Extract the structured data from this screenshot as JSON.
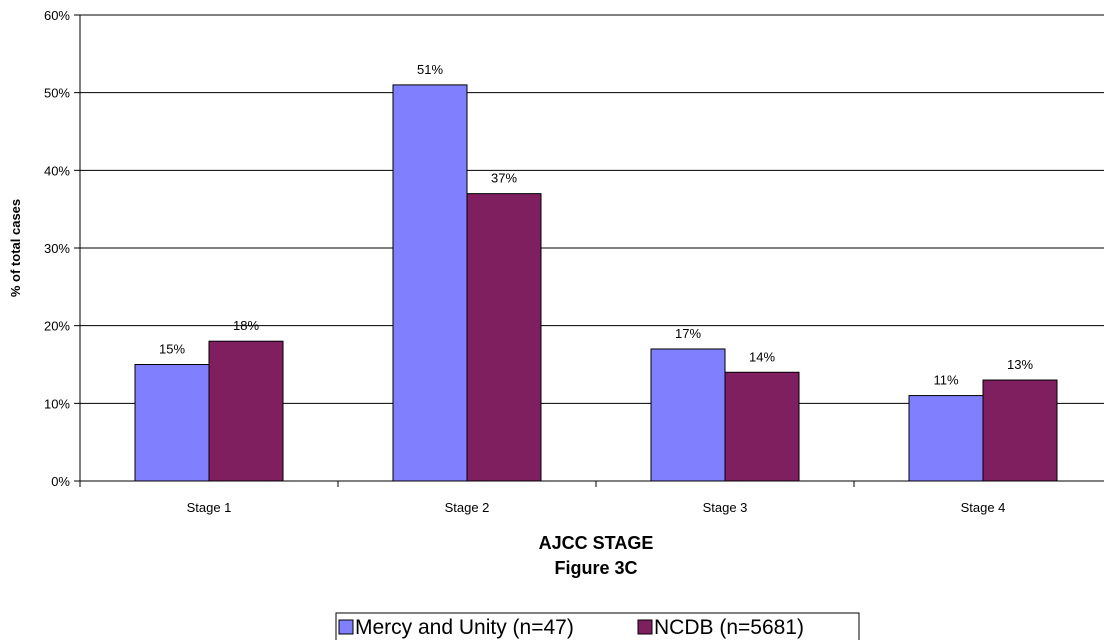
{
  "chart_data": {
    "type": "bar",
    "categories": [
      "Stage 1",
      "Stage 2",
      "Stage 3",
      "Stage 4"
    ],
    "series": [
      {
        "name": "Mercy and Unity (n=47)",
        "values": [
          15,
          51,
          17,
          11
        ],
        "labels": [
          "15%",
          "51%",
          "17%",
          "11%"
        ],
        "color": "#8080ff"
      },
      {
        "name": "NCDB (n=5681)",
        "values": [
          18,
          37,
          14,
          13
        ],
        "labels": [
          "18%",
          "37%",
          "14%",
          "13%"
        ],
        "color": "#7f1f5f"
      }
    ],
    "y_ticks": [
      "0%",
      "10%",
      "20%",
      "30%",
      "40%",
      "50%",
      "60%"
    ],
    "ylim": [
      0,
      60
    ],
    "xlabel": "AJCC STAGE",
    "subtitle": "Figure 3C",
    "ylabel": "% of total cases",
    "grid": true,
    "legend_position": "bottom"
  }
}
